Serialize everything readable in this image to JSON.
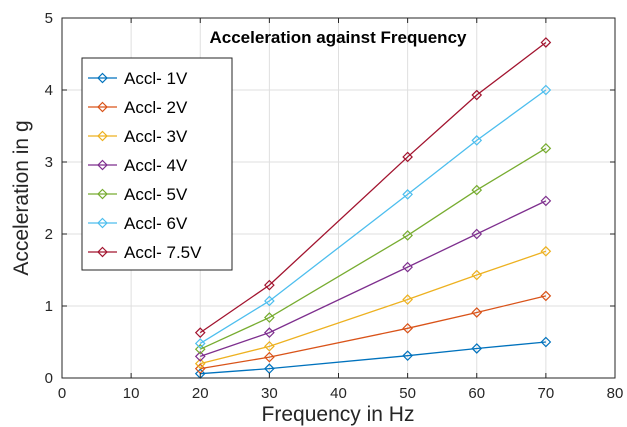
{
  "chart_data": {
    "type": "line",
    "title": "Acceleration against Frequency",
    "xlabel": "Frequency in Hz",
    "ylabel": "Acceleration in g",
    "xlim": [
      0,
      80
    ],
    "ylim": [
      0,
      5
    ],
    "xticks": [
      "0",
      "10",
      "20",
      "30",
      "40",
      "50",
      "60",
      "70",
      "80"
    ],
    "yticks": [
      "0",
      "1",
      "2",
      "3",
      "4",
      "5"
    ],
    "grid": true,
    "legend_position": "top-left",
    "marker": "diamond",
    "x": [
      20,
      30,
      50,
      60,
      70
    ],
    "series": [
      {
        "name": "Accl- 1V",
        "color": "#0072BD",
        "values": [
          0.06,
          0.13,
          0.31,
          0.41,
          0.5
        ]
      },
      {
        "name": "Accl- 2V",
        "color": "#D95319",
        "values": [
          0.13,
          0.29,
          0.69,
          0.91,
          1.14
        ]
      },
      {
        "name": "Accl- 3V",
        "color": "#EDB120",
        "values": [
          0.2,
          0.44,
          1.09,
          1.43,
          1.76
        ]
      },
      {
        "name": "Accl- 4V",
        "color": "#7E2F8E",
        "values": [
          0.3,
          0.63,
          1.54,
          2.0,
          2.46
        ]
      },
      {
        "name": "Accl- 5V",
        "color": "#77AC30",
        "values": [
          0.4,
          0.84,
          1.98,
          2.61,
          3.19
        ]
      },
      {
        "name": "Accl- 6V",
        "color": "#4DBEEE",
        "values": [
          0.48,
          1.07,
          2.55,
          3.3,
          4.0
        ]
      },
      {
        "name": "Accl- 7.5V",
        "color": "#A2142F",
        "values": [
          0.63,
          1.29,
          3.07,
          3.93,
          4.66
        ]
      }
    ]
  }
}
